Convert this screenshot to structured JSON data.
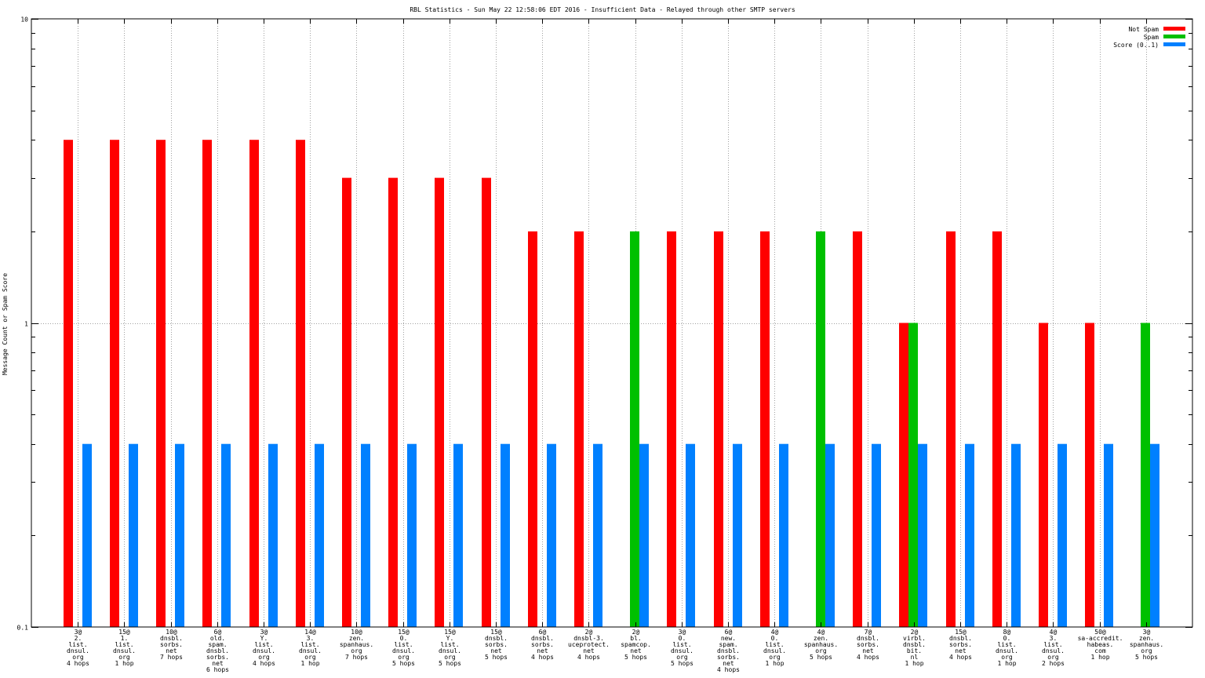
{
  "chart_data": {
    "type": "bar",
    "title": "RBL Statistics - Sun May 22 12:58:06 EDT 2016 - Insufficient Data - Relayed through other SMTP servers",
    "xlabel": "",
    "ylabel": "Message Count or Spam Score",
    "yscale": "log",
    "ylim": [
      0.1,
      10
    ],
    "yticks": [
      {
        "value": 10,
        "label": "10"
      },
      {
        "value": 1,
        "label": "1"
      },
      {
        "value": 0.1,
        "label": "0.1"
      }
    ],
    "grid": true,
    "legend_position": "top-right",
    "categories": [
      [
        "3@",
        "2.",
        "list.",
        "dnsul.",
        "org",
        "4 hops"
      ],
      [
        "15@",
        "1.",
        "list.",
        "dnsul.",
        "org",
        "1 hop"
      ],
      [
        "10@",
        "dnsbl.",
        "sorbs.",
        "net",
        "7 hops"
      ],
      [
        "6@",
        "old.",
        "spam.",
        "dnsbl.",
        "sorbs.",
        "net",
        "6 hops"
      ],
      [
        "3@",
        "Y.",
        "list.",
        "dnsul.",
        "org",
        "4 hops"
      ],
      [
        "14@",
        "3.",
        "list.",
        "dnsul.",
        "org",
        "1 hop"
      ],
      [
        "10@",
        "zen.",
        "spanhaus.",
        "org",
        "7 hops"
      ],
      [
        "15@",
        "0.",
        "list.",
        "dnsul.",
        "org",
        "5 hops"
      ],
      [
        "15@",
        "Y.",
        "list.",
        "dnsul.",
        "org",
        "5 hops"
      ],
      [
        "15@",
        "dnsbl.",
        "sorbs.",
        "net",
        "5 hops"
      ],
      [
        "6@",
        "dnsbl.",
        "sorbs.",
        "net",
        "4 hops"
      ],
      [
        "2@",
        "dnsbl-3.",
        "uceprotect.",
        "net",
        "4 hops"
      ],
      [
        "2@",
        "bl.",
        "spamcop.",
        "net",
        "5 hops"
      ],
      [
        "3@",
        "0.",
        "list.",
        "dnsul.",
        "org",
        "5 hops"
      ],
      [
        "6@",
        "new.",
        "spam.",
        "dnsbl.",
        "sorbs.",
        "net",
        "4 hops"
      ],
      [
        "4@",
        "0.",
        "list.",
        "dnsul.",
        "org",
        "1 hop"
      ],
      [
        "4@",
        "zen.",
        "spanhaus.",
        "org",
        "5 hops"
      ],
      [
        "7@",
        "dnsbl.",
        "sorbs.",
        "net",
        "4 hops"
      ],
      [
        "2@",
        "virbl.",
        "dnsbl.",
        "bit.",
        "nl",
        "1 hop"
      ],
      [
        "15@",
        "dnsbl.",
        "sorbs.",
        "net",
        "4 hops"
      ],
      [
        "8@",
        "0.",
        "list.",
        "dnsul.",
        "org",
        "1 hop"
      ],
      [
        "4@",
        "3.",
        "list.",
        "dnsul.",
        "org",
        "2 hops"
      ],
      [
        "50@",
        "sa-accredit.",
        "habeas.",
        "com",
        "1 hop"
      ],
      [
        "3@",
        "zen.",
        "spanhaus.",
        "org",
        "5 hops"
      ]
    ],
    "series": [
      {
        "name": "Not Spam",
        "color": "#ff0000",
        "values": [
          4,
          4,
          4,
          4,
          4,
          4,
          3,
          3,
          3,
          3,
          2,
          2,
          0,
          2,
          2,
          2,
          0,
          2,
          1,
          2,
          2,
          1,
          1,
          0
        ]
      },
      {
        "name": "Spam",
        "color": "#00c000",
        "values": [
          0,
          0,
          0,
          0,
          0,
          0,
          0,
          0,
          0,
          0,
          0,
          0,
          2,
          0,
          0,
          0,
          2,
          0,
          1,
          0,
          0,
          0,
          0,
          1
        ]
      },
      {
        "name": "Score (0..1)",
        "color": "#0080ff",
        "values": [
          0.4,
          0.4,
          0.4,
          0.4,
          0.4,
          0.4,
          0.4,
          0.4,
          0.4,
          0.4,
          0.4,
          0.4,
          0.4,
          0.4,
          0.4,
          0.4,
          0.4,
          0.4,
          0.4,
          0.4,
          0.4,
          0.4,
          0.4,
          0.4
        ]
      }
    ]
  }
}
